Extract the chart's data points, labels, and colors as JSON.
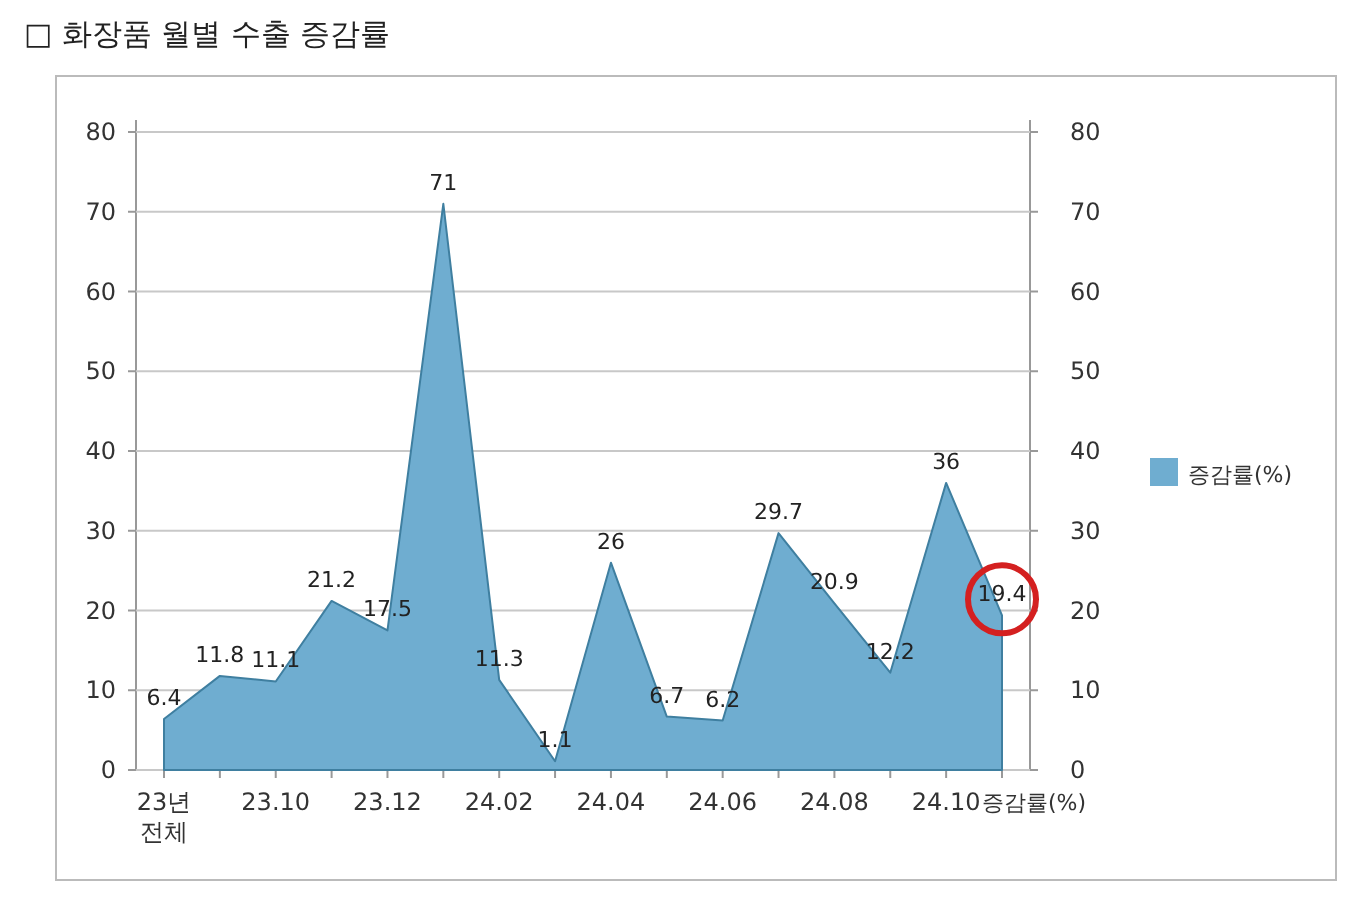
{
  "chart_data": {
    "type": "area",
    "title": "□ 화장품 월별 수출 증감률",
    "categories": [
      "23년 전체",
      null,
      "23.10",
      null,
      "23.12",
      null,
      "24.02",
      null,
      "24.04",
      null,
      "24.06",
      null,
      "24.08",
      null,
      "24.10",
      null
    ],
    "series": [
      {
        "name": "증감률(%)",
        "color": "#6fadd0",
        "values": [
          6.4,
          11.8,
          11.1,
          21.2,
          17.5,
          71,
          11.3,
          1.1,
          26,
          6.7,
          6.2,
          29.7,
          20.9,
          12.2,
          36,
          19.4
        ]
      }
    ],
    "ylim": [
      0,
      80
    ],
    "yticks": [
      0,
      10,
      20,
      30,
      40,
      50,
      60,
      70,
      80
    ],
    "y2lim": [
      0,
      80
    ],
    "y2ticks": [
      0,
      10,
      20,
      30,
      40,
      50,
      60,
      70,
      80
    ],
    "grid": "y",
    "legend": "right",
    "data_labels": true,
    "annotations": [
      "증감률(%)"
    ]
  }
}
